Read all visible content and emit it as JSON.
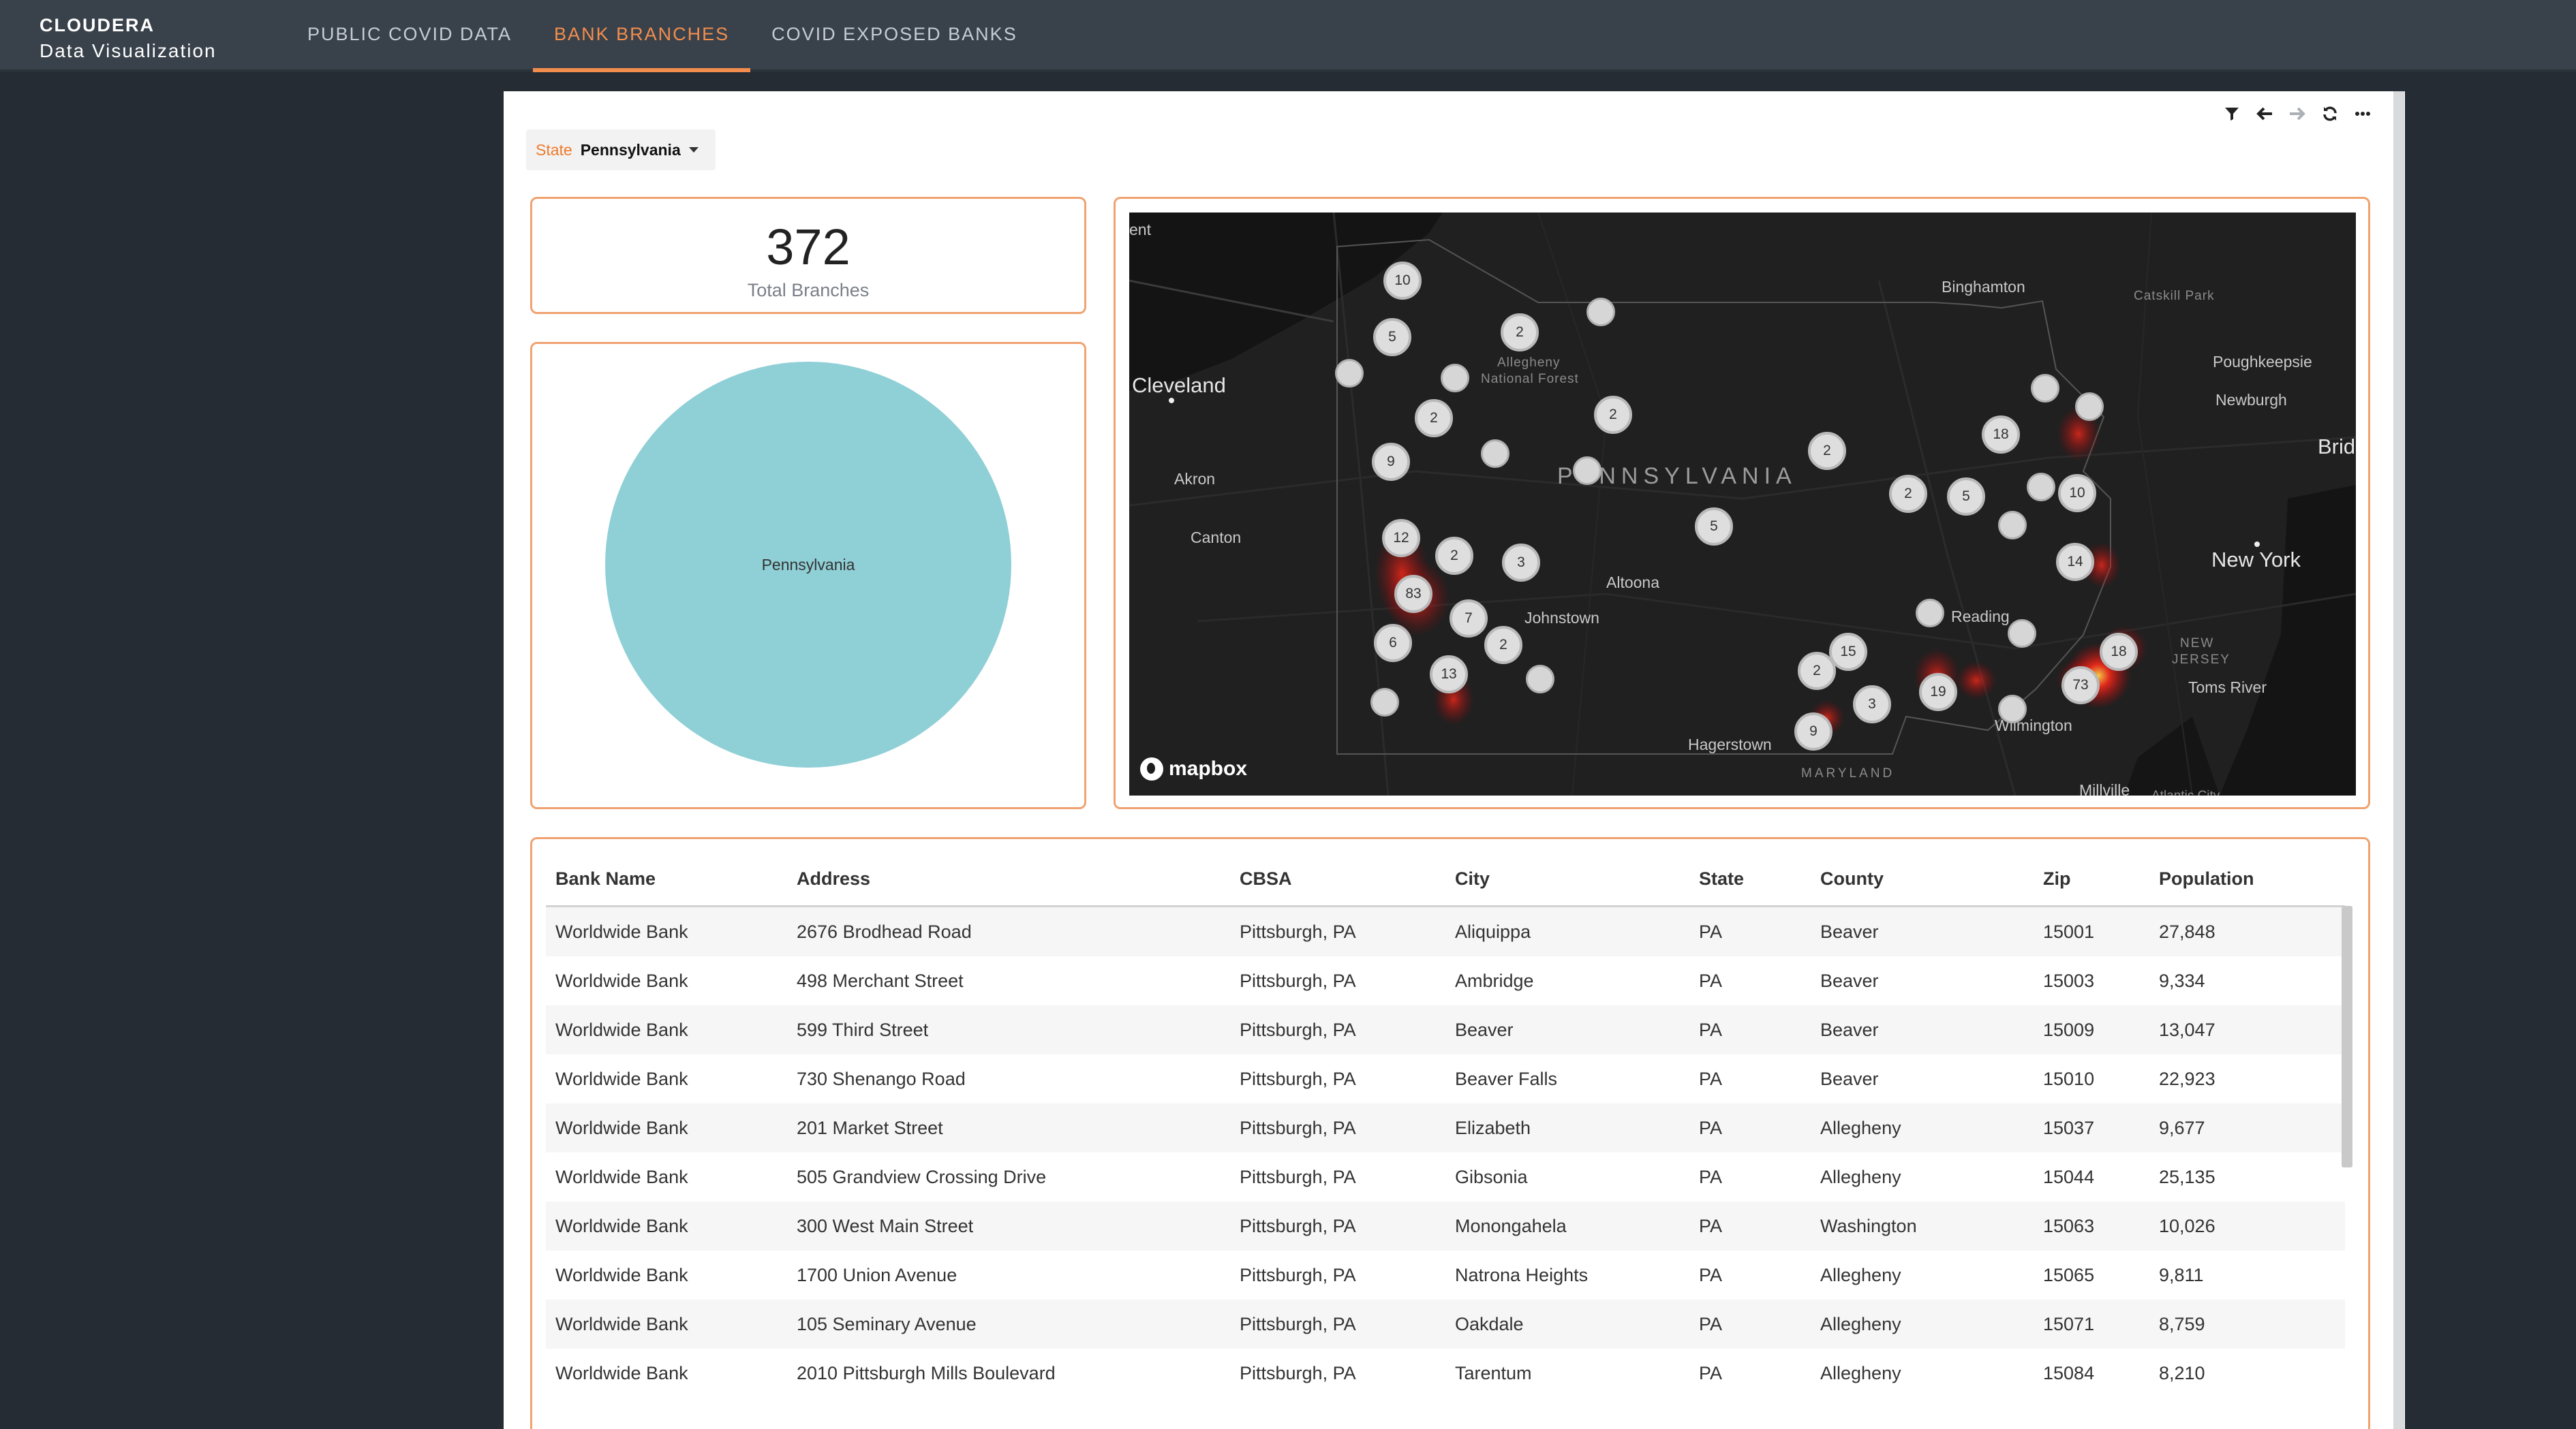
{
  "header": {
    "brand_top": "CLOUDERA",
    "brand_bottom": "Data Visualization",
    "tabs": [
      {
        "label": "PUBLIC COVID DATA"
      },
      {
        "label": "BANK BRANCHES"
      },
      {
        "label": "COVID EXPOSED BANKS"
      }
    ]
  },
  "toolbar": {
    "icons": [
      "filter-icon",
      "back-arrow-icon",
      "forward-arrow-icon",
      "refresh-icon",
      "more-icon"
    ]
  },
  "filter": {
    "label": "State",
    "value": "Pennsylvania"
  },
  "kpi": {
    "value": "372",
    "label": "Total Branches"
  },
  "pie": {
    "slice_label": "Pennsylvania",
    "color": "#8fcfd6"
  },
  "map": {
    "attribution": "mapbox",
    "state_label": "PENNSYLVANIA",
    "labels": [
      {
        "text": "Cleveland"
      },
      {
        "text": "Akron"
      },
      {
        "text": "Canton"
      },
      {
        "text": "Binghamton"
      },
      {
        "text": "Catskill Park"
      },
      {
        "text": "Poughkeepsie"
      },
      {
        "text": "Newburgh"
      },
      {
        "text": "New York"
      },
      {
        "text": "Altoona"
      },
      {
        "text": "Johnstown"
      },
      {
        "text": "Reading"
      },
      {
        "text": "Hagerstown"
      },
      {
        "text": "MARYLAND"
      },
      {
        "text": "Wilmington"
      },
      {
        "text": "NEW"
      },
      {
        "text": "JERSEY"
      },
      {
        "text": "Toms River"
      },
      {
        "text": "Millville"
      },
      {
        "text": "Allegheny"
      },
      {
        "text": "National Forest"
      },
      {
        "text": "Brid"
      },
      {
        "text": "ent"
      },
      {
        "text": "Atlantic City"
      }
    ],
    "clusters": [
      {
        "count": "10"
      },
      {
        "count": "5"
      },
      {
        "count": "2"
      },
      {
        "count": "2"
      },
      {
        "count": "2"
      },
      {
        "count": "9"
      },
      {
        "count": "12"
      },
      {
        "count": "2"
      },
      {
        "count": "3"
      },
      {
        "count": "83"
      },
      {
        "count": "7"
      },
      {
        "count": "6"
      },
      {
        "count": "2"
      },
      {
        "count": "13"
      },
      {
        "count": "5"
      },
      {
        "count": "2"
      },
      {
        "count": "2"
      },
      {
        "count": "5"
      },
      {
        "count": "18"
      },
      {
        "count": "10"
      },
      {
        "count": "14"
      },
      {
        "count": "2"
      },
      {
        "count": "15"
      },
      {
        "count": "3"
      },
      {
        "count": "19"
      },
      {
        "count": "9"
      },
      {
        "count": "73"
      },
      {
        "count": "18"
      }
    ]
  },
  "table": {
    "columns": [
      "Bank Name",
      "Address",
      "CBSA",
      "City",
      "State",
      "County",
      "Zip",
      "Population"
    ],
    "rows": [
      [
        "Worldwide Bank",
        "2676 Brodhead Road",
        "Pittsburgh, PA",
        "Aliquippa",
        "PA",
        "Beaver",
        "15001",
        "27,848"
      ],
      [
        "Worldwide Bank",
        "498 Merchant Street",
        "Pittsburgh, PA",
        "Ambridge",
        "PA",
        "Beaver",
        "15003",
        "9,334"
      ],
      [
        "Worldwide Bank",
        "599 Third Street",
        "Pittsburgh, PA",
        "Beaver",
        "PA",
        "Beaver",
        "15009",
        "13,047"
      ],
      [
        "Worldwide Bank",
        "730 Shenango Road",
        "Pittsburgh, PA",
        "Beaver Falls",
        "PA",
        "Beaver",
        "15010",
        "22,923"
      ],
      [
        "Worldwide Bank",
        "201 Market Street",
        "Pittsburgh, PA",
        "Elizabeth",
        "PA",
        "Allegheny",
        "15037",
        "9,677"
      ],
      [
        "Worldwide Bank",
        "505 Grandview Crossing Drive",
        "Pittsburgh, PA",
        "Gibsonia",
        "PA",
        "Allegheny",
        "15044",
        "25,135"
      ],
      [
        "Worldwide Bank",
        "300 West Main Street",
        "Pittsburgh, PA",
        "Monongahela",
        "PA",
        "Washington",
        "15063",
        "10,026"
      ],
      [
        "Worldwide Bank",
        "1700 Union Avenue",
        "Pittsburgh, PA",
        "Natrona Heights",
        "PA",
        "Allegheny",
        "15065",
        "9,811"
      ],
      [
        "Worldwide Bank",
        "105 Seminary Avenue",
        "Pittsburgh, PA",
        "Oakdale",
        "PA",
        "Allegheny",
        "15071",
        "8,759"
      ],
      [
        "Worldwide Bank",
        "2010 Pittsburgh Mills Boulevard",
        "Pittsburgh, PA",
        "Tarentum",
        "PA",
        "Allegheny",
        "15084",
        "8,210"
      ]
    ]
  },
  "colors": {
    "accent": "#f07a2a",
    "header_bg": "#39424b",
    "page_bg": "#252c33",
    "map_bg": "#1d1d1d",
    "heat": "#ff2a1a"
  }
}
